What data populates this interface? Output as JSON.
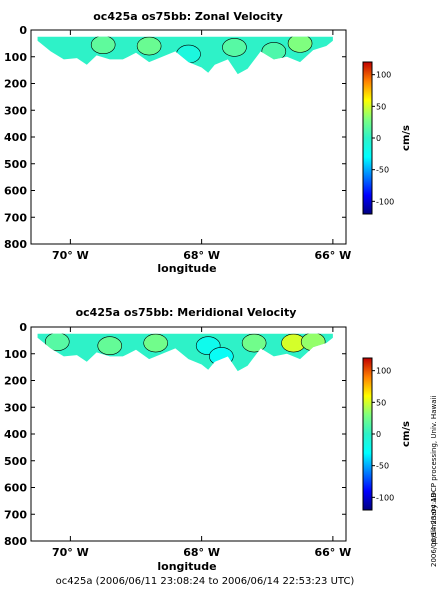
{
  "figure": {
    "footer": "oc425a (2006/06/11 23:08:24 to 2006/06/14 22:53:23 UTC)",
    "side_note": "preliminary ADCP processing,   Univ. Hawaii",
    "stamp": "2006/06/14 23:04:19"
  },
  "chart_data": [
    {
      "type": "heatmap",
      "title": "oc425a os75bb: Zonal Velocity",
      "xlabel": "longitude",
      "ylabel": "",
      "xlim": [
        -70.6,
        -65.8
      ],
      "ylim": [
        800,
        0
      ],
      "x_ticks": [
        -70,
        -68,
        -66
      ],
      "x_tick_labels": [
        "70° W",
        "68° W",
        "66° W"
      ],
      "y_ticks": [
        0,
        100,
        200,
        300,
        400,
        500,
        600,
        700,
        800
      ],
      "y_tick_labels": [
        "0",
        "100",
        "200",
        "300",
        "400",
        "500",
        "600",
        "700",
        "800"
      ],
      "data_top_depth": 25,
      "bottom_depth_profile": {
        "lon": [
          -70.5,
          -70.3,
          -70.1,
          -69.9,
          -69.75,
          -69.6,
          -69.4,
          -69.2,
          -69.0,
          -68.8,
          -68.6,
          -68.4,
          -68.2,
          -68.0,
          -67.9,
          -67.8,
          -67.6,
          -67.45,
          -67.3,
          -67.1,
          -66.9,
          -66.7,
          -66.5,
          -66.3,
          -66.1,
          -66.0
        ],
        "depth": [
          40,
          80,
          110,
          105,
          130,
          95,
          110,
          110,
          85,
          120,
          100,
          80,
          120,
          140,
          160,
          130,
          110,
          165,
          145,
          80,
          110,
          100,
          120,
          75,
          60,
          40
        ]
      },
      "patches": [
        {
          "lon": -69.5,
          "depth": 55,
          "value": 18
        },
        {
          "lon": -68.8,
          "depth": 60,
          "value": 22
        },
        {
          "lon": -67.5,
          "depth": 65,
          "value": 15
        },
        {
          "lon": -66.5,
          "depth": 50,
          "value": 30
        },
        {
          "lon": -68.2,
          "depth": 90,
          "value": -12
        },
        {
          "lon": -66.9,
          "depth": 80,
          "value": 12
        }
      ],
      "colorbar": {
        "label": "cm/s",
        "ticks": [
          100,
          50,
          0,
          -50,
          -100
        ],
        "range": [
          -120,
          120
        ]
      }
    },
    {
      "type": "heatmap",
      "title": "oc425a os75bb: Meridional Velocity",
      "xlabel": "longitude",
      "ylabel": "",
      "xlim": [
        -70.6,
        -65.8
      ],
      "ylim": [
        800,
        0
      ],
      "x_ticks": [
        -70,
        -68,
        -66
      ],
      "x_tick_labels": [
        "70° W",
        "68° W",
        "66° W"
      ],
      "y_ticks": [
        0,
        100,
        200,
        300,
        400,
        500,
        600,
        700,
        800
      ],
      "y_tick_labels": [
        "0",
        "100",
        "200",
        "300",
        "400",
        "500",
        "600",
        "700",
        "800"
      ],
      "data_top_depth": 25,
      "bottom_depth_profile": {
        "lon": [
          -70.5,
          -70.3,
          -70.1,
          -69.9,
          -69.75,
          -69.6,
          -69.4,
          -69.2,
          -69.0,
          -68.8,
          -68.6,
          -68.4,
          -68.2,
          -68.0,
          -67.9,
          -67.8,
          -67.6,
          -67.45,
          -67.3,
          -67.1,
          -66.9,
          -66.7,
          -66.5,
          -66.3,
          -66.1,
          -66.0
        ],
        "depth": [
          40,
          80,
          110,
          105,
          130,
          95,
          110,
          110,
          85,
          120,
          100,
          80,
          120,
          140,
          160,
          130,
          110,
          165,
          145,
          80,
          110,
          100,
          120,
          75,
          60,
          40
        ]
      },
      "patches": [
        {
          "lon": -70.2,
          "depth": 55,
          "value": 15
        },
        {
          "lon": -69.4,
          "depth": 70,
          "value": 20
        },
        {
          "lon": -68.7,
          "depth": 60,
          "value": 25
        },
        {
          "lon": -67.9,
          "depth": 70,
          "value": -20
        },
        {
          "lon": -67.7,
          "depth": 110,
          "value": -25
        },
        {
          "lon": -67.2,
          "depth": 60,
          "value": 25
        },
        {
          "lon": -66.6,
          "depth": 60,
          "value": 50
        },
        {
          "lon": -66.3,
          "depth": 55,
          "value": 35
        }
      ],
      "colorbar": {
        "label": "cm/s",
        "ticks": [
          100,
          50,
          0,
          -50,
          -100
        ],
        "range": [
          -120,
          120
        ]
      }
    }
  ]
}
